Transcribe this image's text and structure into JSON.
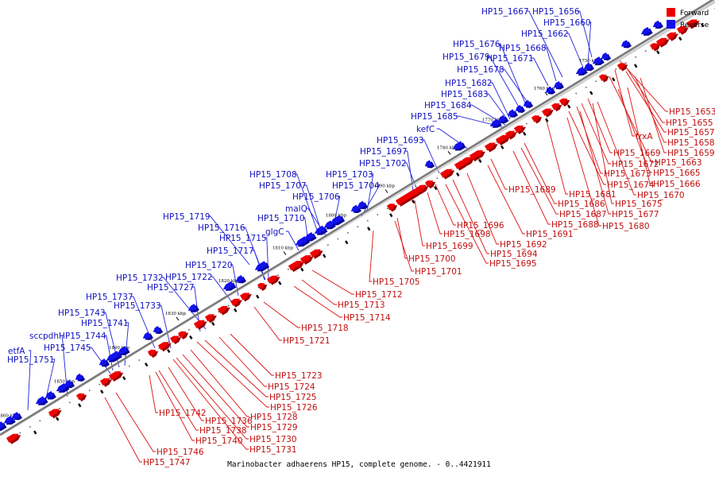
{
  "colors": {
    "forward": "#ee0000",
    "forward_dark": "#990000",
    "reverse": "#1111ee",
    "reverse_dark": "#000099",
    "line_forward": "#dd1111",
    "line_reverse": "#2222dd",
    "backbone": "#888888"
  },
  "legend": [
    {
      "key": "forward",
      "label": "Forward"
    },
    {
      "key": "reverse",
      "label": "Reverse"
    }
  ],
  "footer": "Marinobacter adhaerens HP15, complete genome. - 0..4421911",
  "ticks": [
    {
      "kbp": 1750,
      "label": "1750 kbp"
    },
    {
      "kbp": 1760,
      "label": "1760 kbp"
    },
    {
      "kbp": 1770,
      "label": "1770 kbp"
    },
    {
      "kbp": 1780,
      "label": "1780 kbp"
    },
    {
      "kbp": 1790,
      "label": "1790 kbp"
    },
    {
      "kbp": 1800,
      "label": "1800 kbp"
    },
    {
      "kbp": 1810,
      "label": "1810 kbp"
    },
    {
      "kbp": 1820,
      "label": "1820 kbp"
    },
    {
      "kbp": 1830,
      "label": "1830 kbp"
    },
    {
      "kbp": 1840,
      "label": "1840 kbp"
    },
    {
      "kbp": 1850,
      "label": "1850 kbp"
    },
    {
      "kbp": 1860,
      "label": "1860 kbp"
    }
  ],
  "reverse_genes": [
    "HP15_1656",
    "HP15_1667",
    "HP15_1660",
    "HP15_1662",
    "HP15_1668",
    "HP15_1676",
    "HP15_1671",
    "HP15_1679",
    "HP15_1678",
    "HP15_1682",
    "HP15_1683",
    "HP15_1684",
    "HP15_1685",
    "kefC",
    "HP15_1693",
    "HP15_1697",
    "HP15_1702",
    "HP15_1703",
    "HP15_1708",
    "HP15_1704",
    "HP15_1707",
    "HP15_1706",
    "malQ",
    "HP15_1710",
    "glgC",
    "HP15_1719",
    "HP15_1716",
    "HP15_1715",
    "HP15_1717",
    "HP15_1720",
    "HP15_1722",
    "HP15_1732",
    "HP15_1727",
    "HP15_1737",
    "HP15_1733",
    "HP15_1743",
    "HP15_1741",
    "HP15_1744",
    "sccpdh",
    "HP15_1745",
    "etfA",
    "HP15_1751"
  ],
  "forward_genes": [
    "HP15_1653",
    "HP15_1655",
    "trxA",
    "HP15_1657",
    "HP15_1658",
    "HP15_1659",
    "HP15_1663",
    "HP15_1669",
    "HP15_1672",
    "HP15_1665",
    "HP15_1673",
    "HP15_1666",
    "HP15_1674",
    "HP15_1670",
    "HP15_1689",
    "HP15_1681",
    "HP15_1675",
    "HP15_1686",
    "HP15_1677",
    "HP15_1687",
    "HP15_1688",
    "HP15_1680",
    "HP15_1696",
    "HP15_1691",
    "HP15_1698",
    "HP15_1692",
    "HP15_1699",
    "HP15_1694",
    "HP15_1695",
    "HP15_1700",
    "HP15_1701",
    "HP15_1705",
    "HP15_1712",
    "HP15_1713",
    "HP15_1714",
    "HP15_1718",
    "HP15_1721",
    "HP15_1723",
    "HP15_1724",
    "HP15_1725",
    "HP15_1726",
    "HP15_1742",
    "HP15_1728",
    "HP15_1736",
    "HP15_1729",
    "HP15_1738",
    "HP15_1740",
    "HP15_1730",
    "HP15_1731",
    "HP15_1746",
    "HP15_1747"
  ]
}
